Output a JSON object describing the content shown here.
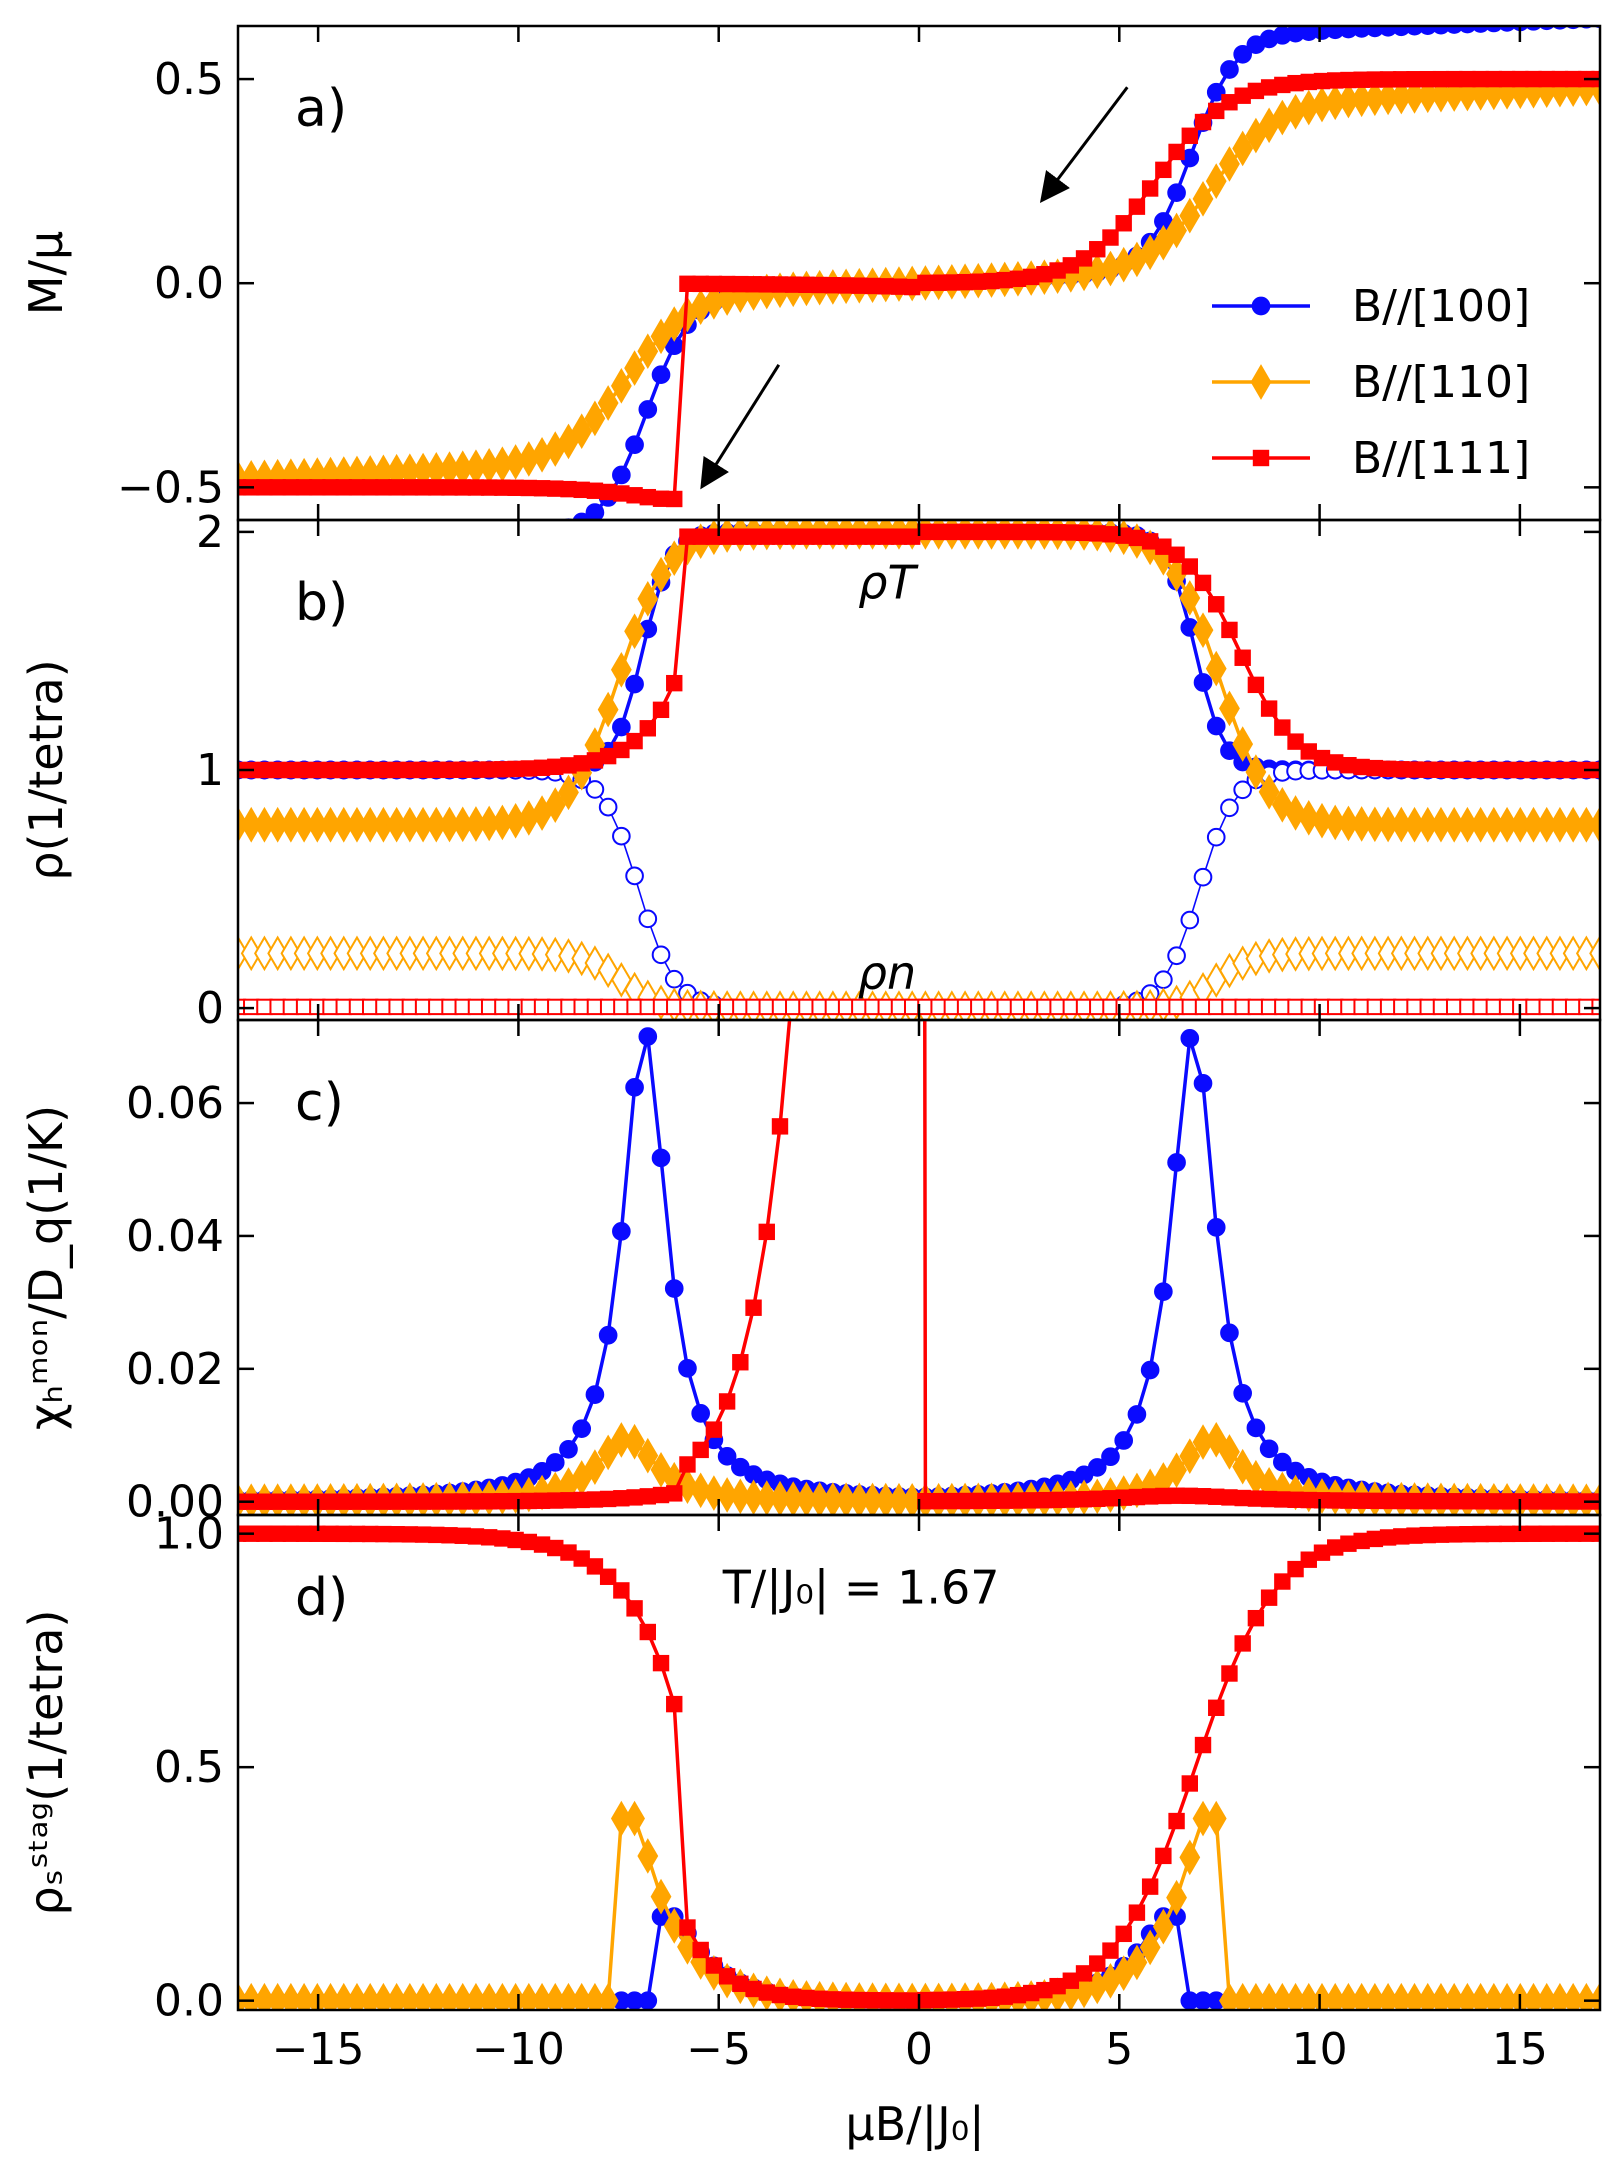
{
  "chart_data": {
    "type": "line",
    "xlabel": "μB/|J₀|",
    "xlim": [
      -17,
      17
    ],
    "xticks": [
      -15,
      -10,
      -5,
      0,
      5,
      10,
      15
    ],
    "x_tick_labels": [
      "−15",
      "−10",
      "−5",
      "0",
      "5",
      "10",
      "15"
    ],
    "colors": {
      "B100": "#0a0aff",
      "B110": "#ffa500",
      "B111": "#ff0000"
    },
    "legend": {
      "placement": "lower-right of panel a",
      "entries": [
        "B//[100]",
        "B//[110]",
        "B//[111]"
      ]
    },
    "panels": [
      {
        "id": "a",
        "label": "a)",
        "ylabel": "M/μ",
        "ylim": [
          -0.58,
          0.63
        ],
        "yticks": [
          -0.5,
          0.0,
          0.5
        ],
        "y_tick_labels": [
          "−0.5",
          "0.0",
          "0.5"
        ],
        "arrows": [
          "arrow pointing down-left near B = 5",
          "arrow pointing down-left near B = -5"
        ],
        "series": [
          {
            "name": "B//[100]",
            "model": "magnetization",
            "sat": 0.58,
            "center": 6.8,
            "width": 0.55,
            "marker": "circle",
            "fill": true
          },
          {
            "name": "B//[110]",
            "model": "magnetization",
            "sat": 0.41,
            "center": 7.3,
            "width": 0.8,
            "marker": "diamond",
            "fill": true
          },
          {
            "name": "B//[111]",
            "model": "magnetization_jump",
            "sat": 0.5,
            "center": 5.9,
            "width": 0.9,
            "marker": "square",
            "fill": true
          }
        ]
      },
      {
        "id": "b",
        "label": "b)",
        "ylabel": "ρ(1/tetra)",
        "ylim": [
          -0.05,
          2.05
        ],
        "yticks": [
          0,
          1,
          2
        ],
        "y_tick_labels": [
          "0",
          "1",
          "2"
        ],
        "annotations": [
          "ρT",
          "ρn"
        ],
        "series": [
          {
            "name": "ρT B//[100]",
            "model": "rhoT",
            "low": 1.0,
            "center": 6.9,
            "width": 0.35,
            "marker": "circle",
            "fill": true
          },
          {
            "name": "ρn B//[100]",
            "model": "rhoN",
            "high": 1.0,
            "center": 7.0,
            "width": 0.45,
            "marker": "circle",
            "fill": false
          },
          {
            "name": "ρT B//[110]",
            "model": "rhoT",
            "low": 0.77,
            "center": 7.5,
            "width": 0.6,
            "marker": "diamond",
            "fill": true
          },
          {
            "name": "ρn B//[110]",
            "model": "rhoN",
            "high": 0.23,
            "center": 7.4,
            "width": 0.45,
            "marker": "diamond",
            "fill": false
          },
          {
            "name": "ρT B//[111]",
            "model": "rhoT111",
            "low": 1.0,
            "center": 8.0,
            "width": 0.7,
            "marker": "square",
            "fill": true
          },
          {
            "name": "ρn B//[111]",
            "model": "zero",
            "marker": "square",
            "fill": false
          }
        ]
      },
      {
        "id": "c",
        "label": "c)",
        "ylabel": "χₕᵐᵒⁿ/D_q(1/K)",
        "ylim": [
          -0.002,
          0.0725
        ],
        "yticks": [
          0.0,
          0.02,
          0.04,
          0.06
        ],
        "y_tick_labels": [
          "0.00",
          "0.02",
          "0.04",
          "0.06"
        ],
        "series": [
          {
            "name": "B//[100]",
            "model": "peak",
            "amp": 0.071,
            "center": 6.85,
            "width": 0.85,
            "marker": "circle",
            "fill": true
          },
          {
            "name": "B//[110]",
            "model": "peak",
            "amp": 0.0095,
            "center": 7.3,
            "width": 1.1,
            "marker": "diamond",
            "fill": true
          },
          {
            "name": "B//[111]",
            "model": "peak111",
            "amp": 0.0045,
            "center": 6.0,
            "width": 1.0,
            "marker": "square",
            "fill": true
          }
        ]
      },
      {
        "id": "d",
        "label": "d)",
        "ylabel": "ρₛˢᵗᵃᵍ(1/tetra)",
        "ylim": [
          -0.02,
          1.04
        ],
        "yticks": [
          0.0,
          0.5,
          1.0
        ],
        "y_tick_labels": [
          "0.0",
          "0.5",
          "1.0"
        ],
        "annotation": "T/|J₀| = 1.67",
        "series": [
          {
            "name": "B//[100]",
            "model": "stag_small",
            "peak": 0.18,
            "cut": 6.3,
            "marker": "circle",
            "fill": true
          },
          {
            "name": "B//[110]",
            "model": "stag_small",
            "peak": 0.39,
            "cut": 7.3,
            "marker": "diamond",
            "fill": true
          },
          {
            "name": "B//[111]",
            "model": "stag111",
            "center": 6.9,
            "width": 1.0,
            "marker": "square",
            "fill": true
          }
        ]
      }
    ]
  }
}
